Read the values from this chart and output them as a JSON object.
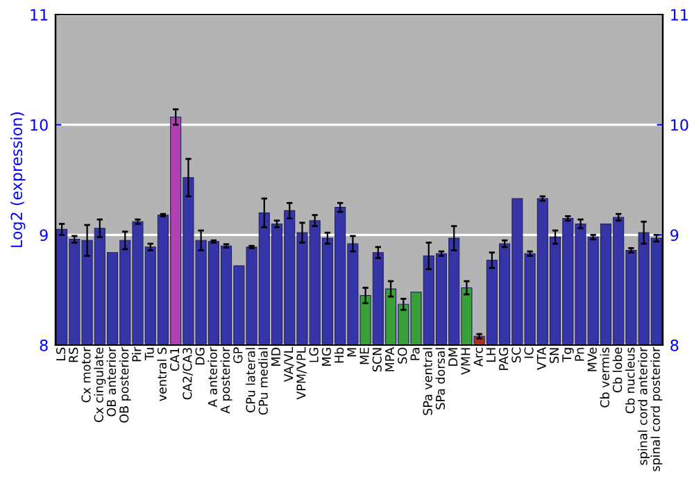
{
  "chart_data": {
    "type": "bar",
    "ylabel": "Log2 (expression)",
    "categories": [
      "LS",
      "RS",
      "Cx motor",
      "Cx cingulate",
      "OB anterior",
      "OB posterior",
      "Pir",
      "Tu",
      "ventral S",
      "CA1",
      "CA2/CA3",
      "DG",
      "A anterior",
      "A posterior",
      "GP",
      "CPu lateral",
      "CPu medial",
      "MD",
      "VA/VL",
      "VPM/VPL",
      "LG",
      "MG",
      "Hb",
      "M",
      "ME",
      "SCN",
      "MPA",
      "SO",
      "Pa",
      "SPa ventral",
      "SPa dorsal",
      "DM",
      "VMH",
      "Arc",
      "LH",
      "PAG",
      "SC",
      "IC",
      "VTA",
      "SN",
      "Tg",
      "Pn",
      "MVe",
      "Cb vermis",
      "Cb lobe",
      "Cb nucleus",
      "spinal cord anterior",
      "spinal cord posterior"
    ],
    "values": [
      9.05,
      8.96,
      8.95,
      9.06,
      8.84,
      8.95,
      9.12,
      8.89,
      9.18,
      10.07,
      9.52,
      8.95,
      8.94,
      8.9,
      8.72,
      8.89,
      9.2,
      9.1,
      9.22,
      9.02,
      9.13,
      8.97,
      9.25,
      8.92,
      8.45,
      8.84,
      8.51,
      8.37,
      8.48,
      8.81,
      8.83,
      8.97,
      8.52,
      8.08,
      8.77,
      8.92,
      9.33,
      8.83,
      9.33,
      8.98,
      9.15,
      9.1,
      8.98,
      9.1,
      9.16,
      8.86,
      9.02,
      8.97
    ],
    "errors": [
      0.05,
      0.03,
      0.14,
      0.08,
      null,
      0.08,
      0.02,
      0.03,
      0.01,
      0.07,
      0.17,
      0.09,
      0.01,
      0.015,
      null,
      0.01,
      0.13,
      0.03,
      0.07,
      0.09,
      0.05,
      0.05,
      0.04,
      0.07,
      0.07,
      0.05,
      0.07,
      0.05,
      null,
      0.12,
      0.02,
      0.11,
      0.06,
      0.02,
      0.07,
      0.03,
      null,
      0.02,
      0.02,
      0.06,
      0.02,
      0.04,
      0.02,
      null,
      0.03,
      0.02,
      0.1,
      0.03
    ],
    "colors": [
      "#3535a8",
      "#3535a8",
      "#3535a8",
      "#3535a8",
      "#3535a8",
      "#3535a8",
      "#3535a8",
      "#3535a8",
      "#3535a8",
      "#b040b0",
      "#3535a8",
      "#3535a8",
      "#3535a8",
      "#3535a8",
      "#3535a8",
      "#3535a8",
      "#3535a8",
      "#3535a8",
      "#3535a8",
      "#3535a8",
      "#3535a8",
      "#3535a8",
      "#3535a8",
      "#3535a8",
      "#38a038",
      "#3535a8",
      "#38a038",
      "#38a038",
      "#38a038",
      "#3535a8",
      "#3535a8",
      "#3535a8",
      "#38a038",
      "#b03020",
      "#3535a8",
      "#3535a8",
      "#3535a8",
      "#3535a8",
      "#3535a8",
      "#3535a8",
      "#3535a8",
      "#3535a8",
      "#3535a8",
      "#3535a8",
      "#3535a8",
      "#3535a8",
      "#3535a8",
      "#3535a8"
    ],
    "ylim": [
      8,
      11
    ],
    "yticks": [
      8,
      9,
      10,
      11
    ],
    "y2lim": [
      8,
      11
    ],
    "y2ticks": [
      8,
      9,
      10,
      11
    ],
    "grid": "y"
  }
}
